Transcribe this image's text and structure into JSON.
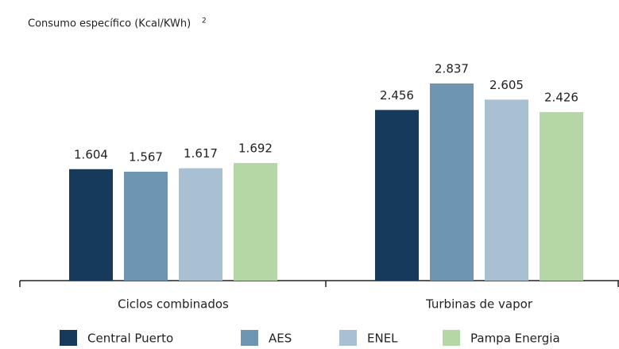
{
  "chart_data": {
    "type": "bar",
    "title": "Consumo específico (Kcal/KWh)",
    "title_note": "2",
    "categories": [
      "Ciclos combinados",
      "Turbinas de vapor"
    ],
    "series": [
      {
        "name": "Central Puerto",
        "color": "#163a5c",
        "values": [
          1604,
          2456
        ],
        "value_labels": [
          "1.604",
          "2.456"
        ]
      },
      {
        "name": "AES",
        "color": "#6e95b2",
        "values": [
          1567,
          2837
        ],
        "value_labels": [
          "1.567",
          "2.837"
        ]
      },
      {
        "name": "ENEL",
        "color": "#a9c0d2",
        "values": [
          1617,
          2605
        ],
        "value_labels": [
          "1.617",
          "2.605"
        ]
      },
      {
        "name": "Pampa Energia",
        "color": "#b5d6a5",
        "values": [
          1692,
          2426
        ],
        "value_labels": [
          "1.692",
          "2.426"
        ]
      }
    ]
  }
}
